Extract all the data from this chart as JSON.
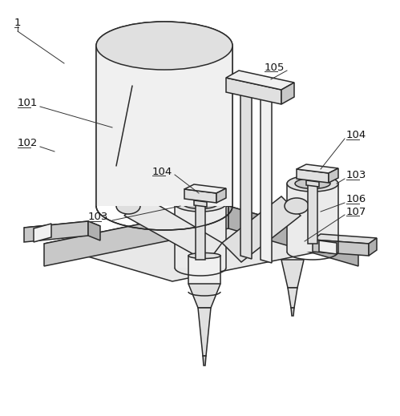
{
  "bg_color": "#ffffff",
  "line_color": "#2a2a2a",
  "lw": 1.1,
  "figsize": [
    4.99,
    5.19
  ],
  "dpi": 100
}
